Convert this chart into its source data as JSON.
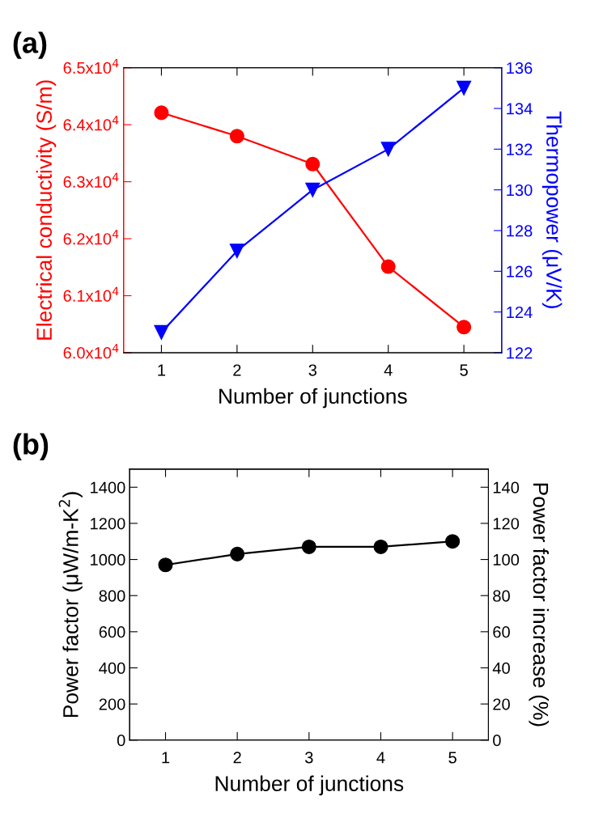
{
  "chart_data": [
    {
      "type": "line",
      "title": "(a)",
      "xlabel": "Number of junctions",
      "ylabel": "Electrical conductivity (S/m)",
      "y2label": "Thermopower (μV/K)",
      "x": [
        1,
        2,
        3,
        4,
        5
      ],
      "xlim": [
        0.5,
        5.5
      ],
      "xticks": [
        1,
        2,
        3,
        4,
        5
      ],
      "ylim": [
        60000,
        65000
      ],
      "yticks": [
        {
          "value": 60000,
          "label": "6.0x10$^{4}$"
        },
        {
          "value": 61000,
          "label": "6.1x10$^{4}$"
        },
        {
          "value": 62000,
          "label": "6.2x10$^{4}$"
        },
        {
          "value": 63000,
          "label": "6.3x10$^{4}$"
        },
        {
          "value": 64000,
          "label": "6.4x10$^{4}$"
        },
        {
          "value": 65000,
          "label": "6.5x10$^{4}$"
        }
      ],
      "y2lim": [
        122,
        136
      ],
      "y2ticks": [
        122,
        124,
        126,
        128,
        130,
        132,
        134,
        136
      ],
      "grid": false,
      "legend": false,
      "series": [
        {
          "color": "#ff0000",
          "marker": "circle",
          "values": [
            64210,
            63800,
            63310,
            61510,
            60450
          ]
        },
        {
          "color": "#0000ff",
          "marker": "triangle",
          "axis": "y2",
          "values": [
            123,
            127,
            130,
            132,
            135
          ]
        }
      ]
    },
    {
      "type": "line",
      "title": "(b)",
      "xlabel": "Number of junctions",
      "ylabel": "Power factor (μW/m-K$^{2}$)",
      "y2label": "Power factor increase (%)",
      "x": [
        1,
        2,
        3,
        4,
        5
      ],
      "xlim": [
        0.5,
        5.5
      ],
      "xticks": [
        1,
        2,
        3,
        4,
        5
      ],
      "ylim": [
        0,
        1500
      ],
      "yticks": [
        0,
        200,
        400,
        600,
        800,
        1000,
        1200,
        1400
      ],
      "y2lim": [
        0,
        150
      ],
      "y2ticks": [
        0,
        20,
        40,
        60,
        80,
        100,
        120,
        140
      ],
      "grid": false,
      "legend": false,
      "series": [
        {
          "color": "#000000",
          "marker": "circle",
          "values": [
            970,
            1030,
            1070,
            1070,
            1100
          ]
        }
      ]
    }
  ]
}
